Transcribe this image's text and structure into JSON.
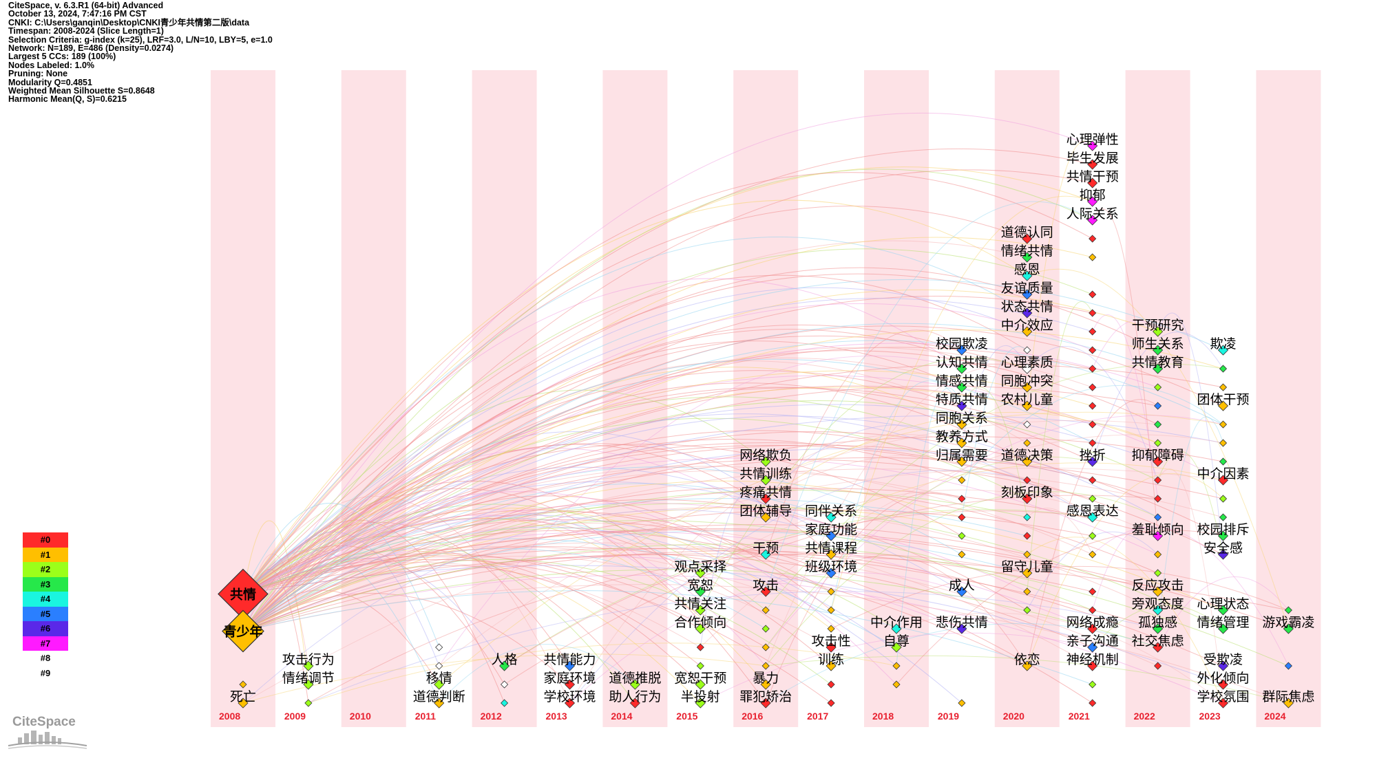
{
  "info": {
    "lines": [
      "CiteSpace, v. 6.3.R1 (64-bit) Advanced",
      "October 13, 2024, 7:47:16 PM CST",
      "CNKI: C:\\Users\\ganqin\\Desktop\\CNKI青少年共情第二版\\data",
      "Timespan: 2008-2024 (Slice Length=1)",
      "Selection Criteria: g-index (k=25), LRF=3.0, L/N=10, LBY=5, e=1.0",
      "Network: N=189, E=486 (Density=0.0274)",
      "Largest 5 CCs: 189 (100%)",
      "Nodes Labeled: 1.0%",
      "Pruning: None",
      "Modularity Q=0.4851",
      "Weighted Mean Silhouette S=0.8648",
      "Harmonic Mean(Q, S)=0.6215"
    ]
  },
  "legend": {
    "items": [
      {
        "label": "#0",
        "color": "#ff2a2a"
      },
      {
        "label": "#1",
        "color": "#ffbf00"
      },
      {
        "label": "#2",
        "color": "#9bff1a"
      },
      {
        "label": "#3",
        "color": "#26e84a"
      },
      {
        "label": "#4",
        "color": "#1af5e0"
      },
      {
        "label": "#5",
        "color": "#2a7fff"
      },
      {
        "label": "#6",
        "color": "#5a28e8"
      },
      {
        "label": "#7",
        "color": "#ff1aff"
      },
      {
        "label": "#8",
        "color": ""
      },
      {
        "label": "#9",
        "color": ""
      }
    ]
  },
  "logo": {
    "text": "CiteSpace"
  },
  "colors": {
    "band": "#fde2e6",
    "year_label": "#e8202f",
    "edge_palette": [
      "#f08a8a",
      "#f5b5b5",
      "#f7d36b",
      "#b7e06b",
      "#8fd4f0",
      "#b0b0f5",
      "#f0a0e0"
    ]
  },
  "timeline": {
    "years": [
      "2008",
      "2009",
      "2010",
      "2011",
      "2012",
      "2013",
      "2014",
      "2015",
      "2016",
      "2017",
      "2018",
      "2019",
      "2020",
      "2021",
      "2022",
      "2023",
      "2024"
    ],
    "banded": [
      true,
      false,
      true,
      false,
      true,
      false,
      true,
      false,
      true,
      false,
      true,
      false,
      true,
      false,
      true,
      false,
      true
    ]
  },
  "keywords": [
    {
      "year": 0,
      "row": 26.5,
      "text": "共情",
      "cluster": 0,
      "big": 2,
      "bold": true
    },
    {
      "year": 0,
      "row": 28.5,
      "text": "青少年",
      "cluster": 1,
      "big": 1,
      "bold": true
    },
    {
      "year": 0,
      "row": 32,
      "text": "死亡",
      "cluster": 1,
      "big": 0
    },
    {
      "year": 1,
      "row": 30,
      "text": "攻击行为",
      "cluster": 2,
      "big": 0
    },
    {
      "year": 1,
      "row": 31,
      "text": "情绪调节",
      "cluster": 2,
      "big": 0
    },
    {
      "year": 3,
      "row": 31,
      "text": "移情",
      "cluster": 2,
      "big": 0
    },
    {
      "year": 3,
      "row": 32,
      "text": "道德判断",
      "cluster": 1,
      "big": 0
    },
    {
      "year": 4,
      "row": 30,
      "text": "人格",
      "cluster": 3,
      "big": 0
    },
    {
      "year": 5,
      "row": 30,
      "text": "共情能力",
      "cluster": 5,
      "big": 0
    },
    {
      "year": 5,
      "row": 31,
      "text": "家庭环境",
      "cluster": 0,
      "big": 0
    },
    {
      "year": 5,
      "row": 32,
      "text": "学校环境",
      "cluster": 0,
      "big": 0
    },
    {
      "year": 6,
      "row": 31,
      "text": "道德推脱",
      "cluster": 2,
      "big": 0
    },
    {
      "year": 6,
      "row": 32,
      "text": "助人行为",
      "cluster": 0,
      "big": 0
    },
    {
      "year": 7,
      "row": 25,
      "text": "观点采择",
      "cluster": 2,
      "big": 0
    },
    {
      "year": 7,
      "row": 26,
      "text": "宽恕",
      "cluster": 3,
      "big": 0
    },
    {
      "year": 7,
      "row": 27,
      "text": "共情关注",
      "cluster": 2,
      "big": 0
    },
    {
      "year": 7,
      "row": 28,
      "text": "合作倾向",
      "cluster": 2,
      "big": 0
    },
    {
      "year": 7,
      "row": 31,
      "text": "宽恕干预",
      "cluster": 2,
      "big": 0
    },
    {
      "year": 7,
      "row": 32,
      "text": "半投射",
      "cluster": 2,
      "big": 0
    },
    {
      "year": 8,
      "row": 19,
      "text": "网络欺负",
      "cluster": 2,
      "big": 0
    },
    {
      "year": 8,
      "row": 20,
      "text": "共情训练",
      "cluster": 2,
      "big": 0
    },
    {
      "year": 8,
      "row": 21,
      "text": "疼痛共情",
      "cluster": 0,
      "big": 0
    },
    {
      "year": 8,
      "row": 22,
      "text": "团体辅导",
      "cluster": 1,
      "big": 0
    },
    {
      "year": 8,
      "row": 24,
      "text": "干预",
      "cluster": 4,
      "big": 0
    },
    {
      "year": 8,
      "row": 26,
      "text": "攻击",
      "cluster": 0,
      "big": 0
    },
    {
      "year": 8,
      "row": 31,
      "text": "暴力",
      "cluster": 1,
      "big": 0
    },
    {
      "year": 8,
      "row": 32,
      "text": "罪犯矫治",
      "cluster": 0,
      "big": 0
    },
    {
      "year": 9,
      "row": 22,
      "text": "同伴关系",
      "cluster": 4,
      "big": 0
    },
    {
      "year": 9,
      "row": 23,
      "text": "家庭功能",
      "cluster": 5,
      "big": 0
    },
    {
      "year": 9,
      "row": 24,
      "text": "共情课程",
      "cluster": 1,
      "big": 0
    },
    {
      "year": 9,
      "row": 25,
      "text": "班级环境",
      "cluster": 5,
      "big": 0
    },
    {
      "year": 9,
      "row": 29,
      "text": "攻击性",
      "cluster": 0,
      "big": 0
    },
    {
      "year": 9,
      "row": 30,
      "text": "训练",
      "cluster": 1,
      "big": 0
    },
    {
      "year": 10,
      "row": 28,
      "text": "中介作用",
      "cluster": 4,
      "big": 0
    },
    {
      "year": 10,
      "row": 29,
      "text": "自尊",
      "cluster": 2,
      "big": 0
    },
    {
      "year": 11,
      "row": 13,
      "text": "校园欺凌",
      "cluster": 5,
      "big": 0
    },
    {
      "year": 11,
      "row": 14,
      "text": "认知共情",
      "cluster": 3,
      "big": 0
    },
    {
      "year": 11,
      "row": 15,
      "text": "情感共情",
      "cluster": 3,
      "big": 0
    },
    {
      "year": 11,
      "row": 16,
      "text": "特质共情",
      "cluster": 6,
      "big": 0
    },
    {
      "year": 11,
      "row": 17,
      "text": "同胞关系",
      "cluster": 1,
      "big": 0
    },
    {
      "year": 11,
      "row": 18,
      "text": "教养方式",
      "cluster": 1,
      "big": 0
    },
    {
      "year": 11,
      "row": 19,
      "text": "归属需要",
      "cluster": 1,
      "big": 0
    },
    {
      "year": 11,
      "row": 26,
      "text": "成人",
      "cluster": 5,
      "big": 0
    },
    {
      "year": 11,
      "row": 28,
      "text": "悲伤共情",
      "cluster": 6,
      "big": 0
    },
    {
      "year": 12,
      "row": 7,
      "text": "道德认同",
      "cluster": 0,
      "big": 0
    },
    {
      "year": 12,
      "row": 8,
      "text": "情绪共情",
      "cluster": 3,
      "big": 0
    },
    {
      "year": 12,
      "row": 9,
      "text": "感恩",
      "cluster": 4,
      "big": 0
    },
    {
      "year": 12,
      "row": 10,
      "text": "友谊质量",
      "cluster": 5,
      "big": 0
    },
    {
      "year": 12,
      "row": 11,
      "text": "状态共情",
      "cluster": 6,
      "big": 0
    },
    {
      "year": 12,
      "row": 12,
      "text": "中介效应",
      "cluster": 1,
      "big": 0
    },
    {
      "year": 12,
      "row": 14,
      "text": "心理素质",
      "cluster": 9,
      "big": 0
    },
    {
      "year": 12,
      "row": 15,
      "text": "同胞冲突",
      "cluster": 1,
      "big": 0
    },
    {
      "year": 12,
      "row": 16,
      "text": "农村儿童",
      "cluster": 1,
      "big": 0
    },
    {
      "year": 12,
      "row": 19,
      "text": "道德决策",
      "cluster": 1,
      "big": 0
    },
    {
      "year": 12,
      "row": 21,
      "text": "刻板印象",
      "cluster": 0,
      "big": 0
    },
    {
      "year": 12,
      "row": 25,
      "text": "留守儿童",
      "cluster": 1,
      "big": 0
    },
    {
      "year": 12,
      "row": 30,
      "text": "依恋",
      "cluster": 1,
      "big": 0
    },
    {
      "year": 13,
      "row": 2,
      "text": "心理弹性",
      "cluster": 7,
      "big": 0
    },
    {
      "year": 13,
      "row": 3,
      "text": "毕生发展",
      "cluster": 0,
      "big": 0
    },
    {
      "year": 13,
      "row": 4,
      "text": "共情干预",
      "cluster": 0,
      "big": 0
    },
    {
      "year": 13,
      "row": 5,
      "text": "抑郁",
      "cluster": 7,
      "big": 0
    },
    {
      "year": 13,
      "row": 6,
      "text": "人际关系",
      "cluster": 7,
      "big": 0
    },
    {
      "year": 13,
      "row": 19,
      "text": "挫折",
      "cluster": 6,
      "big": 0
    },
    {
      "year": 13,
      "row": 22,
      "text": "感恩表达",
      "cluster": 4,
      "big": 0
    },
    {
      "year": 13,
      "row": 28,
      "text": "网络成瘾",
      "cluster": 0,
      "big": 0
    },
    {
      "year": 13,
      "row": 29,
      "text": "亲子沟通",
      "cluster": 5,
      "big": 0
    },
    {
      "year": 13,
      "row": 30,
      "text": "神经机制",
      "cluster": 0,
      "big": 0
    },
    {
      "year": 14,
      "row": 12,
      "text": "干预研究",
      "cluster": 2,
      "big": 0
    },
    {
      "year": 14,
      "row": 13,
      "text": "师生关系",
      "cluster": 3,
      "big": 0
    },
    {
      "year": 14,
      "row": 14,
      "text": "共情教育",
      "cluster": 3,
      "big": 0
    },
    {
      "year": 14,
      "row": 19,
      "text": "抑郁障碍",
      "cluster": 0,
      "big": 0
    },
    {
      "year": 14,
      "row": 23,
      "text": "羞耻倾向",
      "cluster": 7,
      "big": 0
    },
    {
      "year": 14,
      "row": 26,
      "text": "反应攻击",
      "cluster": 1,
      "big": 0
    },
    {
      "year": 14,
      "row": 27,
      "text": "旁观态度",
      "cluster": 4,
      "big": 0
    },
    {
      "year": 14,
      "row": 28,
      "text": "孤独感",
      "cluster": 3,
      "big": 0
    },
    {
      "year": 14,
      "row": 29,
      "text": "社交焦虑",
      "cluster": 0,
      "big": 0
    },
    {
      "year": 15,
      "row": 13,
      "text": "欺凌",
      "cluster": 4,
      "big": 0
    },
    {
      "year": 15,
      "row": 16,
      "text": "团体干预",
      "cluster": 1,
      "big": 0
    },
    {
      "year": 15,
      "row": 20,
      "text": "中介因素",
      "cluster": 0,
      "big": 0
    },
    {
      "year": 15,
      "row": 23,
      "text": "校园排斥",
      "cluster": 3,
      "big": 0
    },
    {
      "year": 15,
      "row": 24,
      "text": "安全感",
      "cluster": 6,
      "big": 0
    },
    {
      "year": 15,
      "row": 27,
      "text": "心理状态",
      "cluster": 3,
      "big": 0
    },
    {
      "year": 15,
      "row": 28,
      "text": "情绪管理",
      "cluster": 3,
      "big": 0
    },
    {
      "year": 15,
      "row": 30,
      "text": "受欺凌",
      "cluster": 6,
      "big": 0
    },
    {
      "year": 15,
      "row": 31,
      "text": "外化倾向",
      "cluster": 0,
      "big": 0
    },
    {
      "year": 15,
      "row": 32,
      "text": "学校氛围",
      "cluster": 0,
      "big": 0
    },
    {
      "year": 16,
      "row": 28,
      "text": "游戏霸凌",
      "cluster": 3,
      "big": 0
    },
    {
      "year": 16,
      "row": 32,
      "text": "群际焦虑",
      "cluster": 1,
      "big": 0
    }
  ],
  "extra_nodes": [
    {
      "year": 0,
      "row": 31,
      "cluster": 1
    },
    {
      "year": 1,
      "row": 32,
      "cluster": 2
    },
    {
      "year": 3,
      "row": 29,
      "cluster": 8
    },
    {
      "year": 3,
      "row": 30,
      "cluster": 8
    },
    {
      "year": 4,
      "row": 31,
      "cluster": 9
    },
    {
      "year": 4,
      "row": 32,
      "cluster": 4
    },
    {
      "year": 7,
      "row": 29,
      "cluster": 0
    },
    {
      "year": 7,
      "row": 30,
      "cluster": 2
    },
    {
      "year": 8,
      "row": 27,
      "cluster": 1
    },
    {
      "year": 8,
      "row": 28,
      "cluster": 2
    },
    {
      "year": 8,
      "row": 29,
      "cluster": 1
    },
    {
      "year": 8,
      "row": 30,
      "cluster": 1
    },
    {
      "year": 9,
      "row": 26,
      "cluster": 1
    },
    {
      "year": 9,
      "row": 27,
      "cluster": 1
    },
    {
      "year": 9,
      "row": 28,
      "cluster": 1
    },
    {
      "year": 9,
      "row": 31,
      "cluster": 0
    },
    {
      "year": 9,
      "row": 32,
      "cluster": 0
    },
    {
      "year": 10,
      "row": 30,
      "cluster": 1
    },
    {
      "year": 10,
      "row": 31,
      "cluster": 1
    },
    {
      "year": 11,
      "row": 20,
      "cluster": 1
    },
    {
      "year": 11,
      "row": 21,
      "cluster": 0
    },
    {
      "year": 11,
      "row": 22,
      "cluster": 0
    },
    {
      "year": 11,
      "row": 23,
      "cluster": 2
    },
    {
      "year": 11,
      "row": 24,
      "cluster": 1
    },
    {
      "year": 11,
      "row": 32,
      "cluster": 1
    },
    {
      "year": 12,
      "row": 13,
      "cluster": 9
    },
    {
      "year": 12,
      "row": 17,
      "cluster": 9
    },
    {
      "year": 12,
      "row": 18,
      "cluster": 1
    },
    {
      "year": 12,
      "row": 20,
      "cluster": 0
    },
    {
      "year": 12,
      "row": 22,
      "cluster": 4
    },
    {
      "year": 12,
      "row": 23,
      "cluster": 0
    },
    {
      "year": 12,
      "row": 24,
      "cluster": 1
    },
    {
      "year": 12,
      "row": 26,
      "cluster": 1
    },
    {
      "year": 12,
      "row": 27,
      "cluster": 2
    },
    {
      "year": 13,
      "row": 7,
      "cluster": 0
    },
    {
      "year": 13,
      "row": 8,
      "cluster": 1
    },
    {
      "year": 13,
      "row": 10,
      "cluster": 0
    },
    {
      "year": 13,
      "row": 11,
      "cluster": 0
    },
    {
      "year": 13,
      "row": 12,
      "cluster": 0
    },
    {
      "year": 13,
      "row": 13,
      "cluster": 0
    },
    {
      "year": 13,
      "row": 14,
      "cluster": 0
    },
    {
      "year": 13,
      "row": 15,
      "cluster": 0
    },
    {
      "year": 13,
      "row": 16,
      "cluster": 0
    },
    {
      "year": 13,
      "row": 17,
      "cluster": 0
    },
    {
      "year": 13,
      "row": 18,
      "cluster": 0
    },
    {
      "year": 13,
      "row": 20,
      "cluster": 0
    },
    {
      "year": 13,
      "row": 21,
      "cluster": 2
    },
    {
      "year": 13,
      "row": 23,
      "cluster": 2
    },
    {
      "year": 13,
      "row": 24,
      "cluster": 1
    },
    {
      "year": 13,
      "row": 26,
      "cluster": 0
    },
    {
      "year": 13,
      "row": 27,
      "cluster": 0
    },
    {
      "year": 13,
      "row": 31,
      "cluster": 2
    },
    {
      "year": 13,
      "row": 32,
      "cluster": 0
    },
    {
      "year": 14,
      "row": 15,
      "cluster": 2
    },
    {
      "year": 14,
      "row": 16,
      "cluster": 5
    },
    {
      "year": 14,
      "row": 17,
      "cluster": 3
    },
    {
      "year": 14,
      "row": 18,
      "cluster": 2
    },
    {
      "year": 14,
      "row": 20,
      "cluster": 0
    },
    {
      "year": 14,
      "row": 21,
      "cluster": 0
    },
    {
      "year": 14,
      "row": 22,
      "cluster": 5
    },
    {
      "year": 14,
      "row": 24,
      "cluster": 1
    },
    {
      "year": 14,
      "row": 25,
      "cluster": 2
    },
    {
      "year": 14,
      "row": 30,
      "cluster": 0
    },
    {
      "year": 15,
      "row": 14,
      "cluster": 3
    },
    {
      "year": 15,
      "row": 15,
      "cluster": 1
    },
    {
      "year": 15,
      "row": 17,
      "cluster": 1
    },
    {
      "year": 15,
      "row": 18,
      "cluster": 1
    },
    {
      "year": 15,
      "row": 19,
      "cluster": 3
    },
    {
      "year": 15,
      "row": 21,
      "cluster": 2
    },
    {
      "year": 15,
      "row": 22,
      "cluster": 3
    },
    {
      "year": 16,
      "row": 27,
      "cluster": 3
    },
    {
      "year": 16,
      "row": 30,
      "cluster": 5
    }
  ]
}
